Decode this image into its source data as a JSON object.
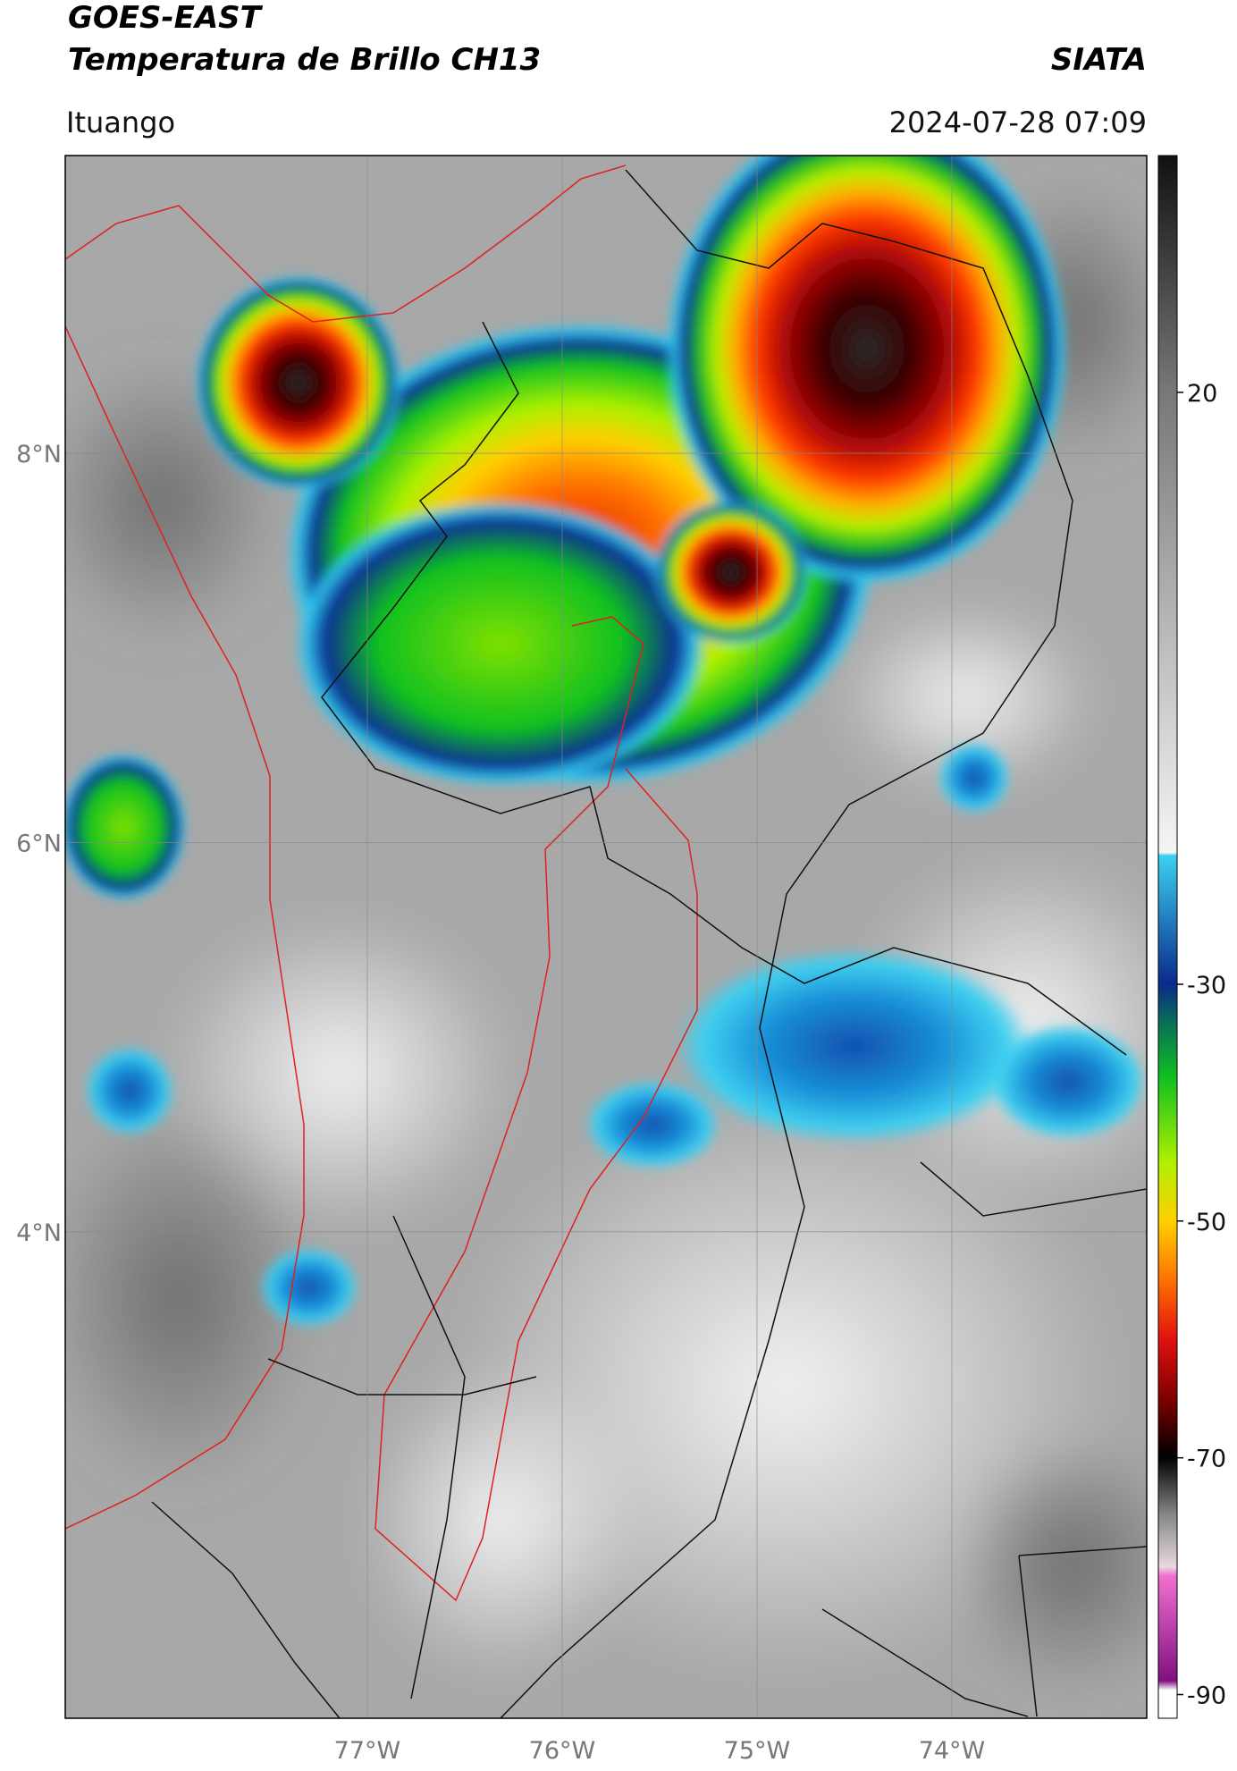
{
  "header": {
    "title_line1": "GOES-EAST",
    "title_line2": "Temperatura de Brillo CH13",
    "org": "SIATA",
    "location": "Ituango",
    "timestamp": "2024-07-28 07:09"
  },
  "map": {
    "xlim": [
      -78.55,
      -73.0
    ],
    "ylim": [
      1.5,
      9.53
    ],
    "xticks": [
      {
        "value": -77,
        "label": "77°W"
      },
      {
        "value": -76,
        "label": "76°W"
      },
      {
        "value": -75,
        "label": "75°W"
      },
      {
        "value": -74,
        "label": "74°W"
      }
    ],
    "yticks": [
      {
        "value": 8,
        "label": "8°N"
      },
      {
        "value": 6,
        "label": "6°N"
      },
      {
        "value": 4,
        "label": "4°N"
      }
    ]
  },
  "colorbar": {
    "lim": [
      -92,
      40
    ],
    "ticks": [
      20,
      -30,
      -50,
      -70,
      -90
    ]
  }
}
